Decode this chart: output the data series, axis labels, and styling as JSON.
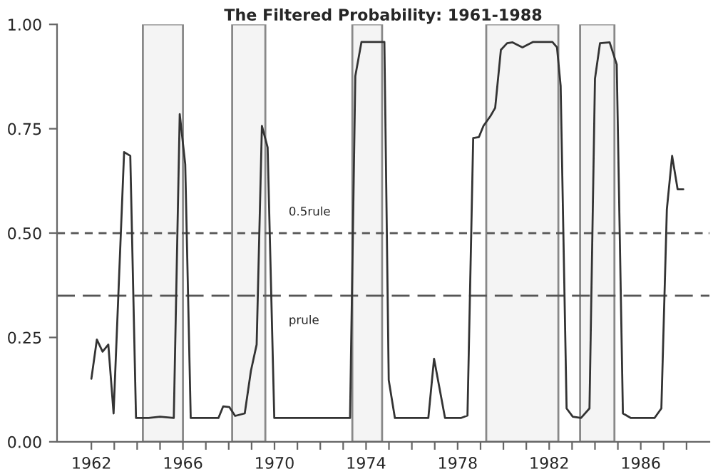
{
  "chart_data": {
    "type": "line",
    "title": "The Filtered Probability: 1961-1988",
    "series": [
      {
        "color": "#333333",
        "x": [
          1962.0,
          1962.24,
          1962.49,
          1962.74,
          1962.97,
          1963.43,
          1963.7,
          1963.95,
          1964.5,
          1965.0,
          1965.6,
          1965.86,
          1966.1,
          1966.34,
          1967.0,
          1967.55,
          1967.76,
          1968.03,
          1968.28,
          1968.7,
          1968.97,
          1969.22,
          1969.45,
          1969.7,
          1969.99,
          1971.5,
          1973.3,
          1973.53,
          1973.8,
          1974.8,
          1974.99,
          1975.26,
          1976.72,
          1976.97,
          1977.45,
          1978.14,
          1978.43,
          1978.68,
          1978.93,
          1979.13,
          1979.43,
          1979.64,
          1979.89,
          1980.16,
          1980.4,
          1980.83,
          1981.3,
          1982.14,
          1982.34,
          1982.5,
          1982.76,
          1983.03,
          1983.39,
          1983.76,
          1984.0,
          1984.22,
          1984.64,
          1984.95,
          1985.22,
          1985.57,
          1986.6,
          1986.9,
          1987.14,
          1987.37,
          1987.61,
          1987.86
        ],
        "values": [
          0.151,
          0.245,
          0.216,
          0.233,
          0.068,
          0.694,
          0.685,
          0.057,
          0.057,
          0.06,
          0.057,
          0.785,
          0.665,
          0.057,
          0.057,
          0.057,
          0.085,
          0.083,
          0.062,
          0.068,
          0.17,
          0.233,
          0.757,
          0.705,
          0.057,
          0.057,
          0.057,
          0.876,
          0.958,
          0.958,
          0.148,
          0.057,
          0.057,
          0.199,
          0.057,
          0.057,
          0.063,
          0.728,
          0.73,
          0.757,
          0.78,
          0.8,
          0.939,
          0.955,
          0.957,
          0.945,
          0.958,
          0.958,
          0.945,
          0.853,
          0.08,
          0.06,
          0.057,
          0.08,
          0.87,
          0.955,
          0.957,
          0.904,
          0.068,
          0.057,
          0.057,
          0.08,
          0.557,
          0.685,
          0.605,
          0.605
        ]
      }
    ],
    "xlim": [
      1960.5,
      1989.0
    ],
    "ylim": [
      0,
      1
    ],
    "xticks": [
      1962,
      {
        "value": 1963,
        "label": null
      },
      {
        "value": 1964,
        "label": null
      },
      {
        "value": 1965,
        "label": null
      },
      1966,
      {
        "value": 1967,
        "label": null
      },
      {
        "value": 1968,
        "label": null
      },
      {
        "value": 1969,
        "label": null
      },
      1970,
      {
        "value": 1971,
        "label": null
      },
      {
        "value": 1972,
        "label": null
      },
      {
        "value": 1973,
        "label": null
      },
      1974,
      {
        "value": 1975,
        "label": null
      },
      {
        "value": 1976,
        "label": null
      },
      {
        "value": 1977,
        "label": null
      },
      1978,
      {
        "value": 1979,
        "label": null
      },
      {
        "value": 1980,
        "label": null
      },
      {
        "value": 1981,
        "label": null
      },
      1982,
      {
        "value": 1983,
        "label": null
      },
      {
        "value": 1984,
        "label": null
      },
      {
        "value": 1985,
        "label": null
      },
      1986,
      {
        "value": 1987,
        "label": null
      },
      {
        "value": 1988,
        "label": null
      }
    ],
    "yticks": [
      {
        "value": 0,
        "label": "0.00"
      },
      {
        "value": 0.25,
        "label": "0.25"
      },
      {
        "value": 0.5,
        "label": "0.50"
      },
      {
        "value": 0.75,
        "label": "0.75"
      },
      {
        "value": 1,
        "label": "1.00"
      }
    ],
    "ref_lines": [
      {
        "axis": "y",
        "value": 0.5,
        "label": "0.5rule",
        "line_style": "dashed",
        "color": "#555555"
      },
      {
        "axis": "y",
        "value": 0.35,
        "label": "prule",
        "line_style": "longdash",
        "color": "#555555"
      }
    ],
    "bands": [
      {
        "axis": "x",
        "from": 1964.25,
        "to": 1966.0,
        "color": "#f4f4f4"
      },
      {
        "axis": "x",
        "from": 1968.15,
        "to": 1969.6,
        "color": "#f4f4f4"
      },
      {
        "axis": "x",
        "from": 1973.4,
        "to": 1974.7,
        "color": "#f4f4f4"
      },
      {
        "axis": "x",
        "from": 1979.25,
        "to": 1982.4,
        "color": "#f4f4f4"
      },
      {
        "axis": "x",
        "from": 1983.35,
        "to": 1984.85,
        "color": "#f4f4f4"
      }
    ],
    "grid": false,
    "legend": false,
    "line_style": "solid",
    "marker": "none"
  }
}
